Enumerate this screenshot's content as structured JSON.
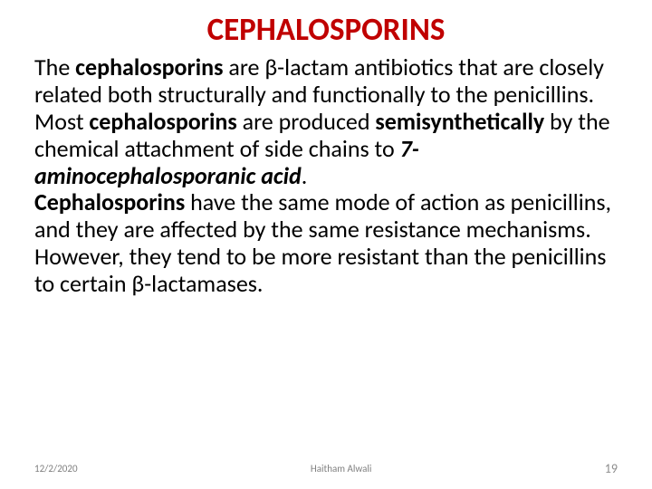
{
  "title": {
    "text": "CEPHALOSPORINS",
    "color": "#c00000",
    "fontsize": 35,
    "fontweight": "bold"
  },
  "body": {
    "fontsize": 26,
    "color": "#000000",
    "p1_part1": "The ",
    "p1_bold1": "cephalosporins",
    "p1_part2": " are β-lactam antibiotics that are closely related both structurally and functionally to the penicillins.",
    "p2_part1": "Most ",
    "p2_bold1": "cephalosporins",
    "p2_part2": " are produced ",
    "p2_bold2": "semisynthetically",
    "p2_part3": " by the chemical attachment of side chains to ",
    "p2_italic": "7-aminocephalosporanic acid",
    "p2_part4": ".",
    "p3_bold1": "Cephalosporins",
    "p3_part1": " have the same mode of action as penicillins, and they are affected by the same resistance mechanisms.",
    "p4": "However, they tend to be more resistant than the penicillins to certain β-lactamases."
  },
  "footer": {
    "date": "12/2/2020",
    "author": "Haitham Alwali",
    "page": "19",
    "fontsize_small": 11,
    "fontsize_page": 14,
    "color": "#898989"
  }
}
